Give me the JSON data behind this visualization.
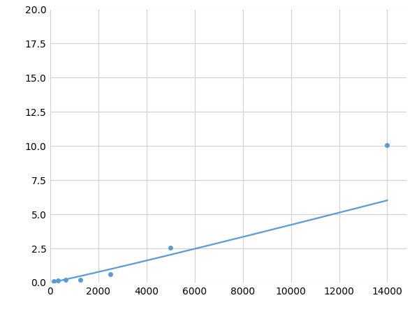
{
  "x_data": [
    156.25,
    312.5,
    625,
    1250,
    2500,
    5000,
    14000
  ],
  "y_data": [
    0.09,
    0.14,
    0.18,
    0.22,
    0.62,
    2.55,
    10.05
  ],
  "line_color": "#5b9bd5",
  "marker_color": "#5b9bd5",
  "marker_size": 5,
  "line_width": 1.6,
  "xlim": [
    0,
    14800
  ],
  "ylim": [
    0,
    20
  ],
  "xticks": [
    0,
    2000,
    4000,
    6000,
    8000,
    10000,
    12000,
    14000
  ],
  "yticks": [
    0.0,
    2.5,
    5.0,
    7.5,
    10.0,
    12.5,
    15.0,
    17.5,
    20.0
  ],
  "grid_color": "#d0d0d0",
  "background_color": "#ffffff",
  "tick_fontsize": 10
}
